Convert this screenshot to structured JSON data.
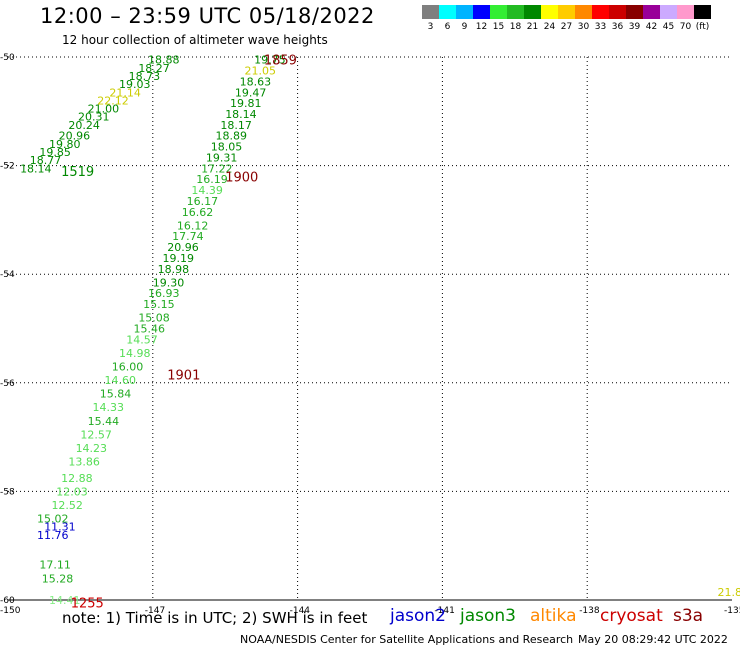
{
  "header": {
    "title": "12:00 – 23:59 UTC 05/18/2022",
    "subtitle": "12 hour collection of altimeter wave heights"
  },
  "legend": {
    "colors": [
      "#7f7f7f",
      "#00ffff",
      "#00b4ff",
      "#0000ff",
      "#33ee33",
      "#22bb22",
      "#008800",
      "#ffff00",
      "#ffcc00",
      "#ff8800",
      "#ff0000",
      "#cc0000",
      "#880000",
      "#990099",
      "#ccaaff",
      "#ff99cc",
      "#000000"
    ],
    "labels": [
      "3",
      "6",
      "9",
      "12",
      "15",
      "18",
      "21",
      "24",
      "27",
      "30",
      "33",
      "36",
      "39",
      "42",
      "45",
      "70",
      "(ft)"
    ]
  },
  "map": {
    "lon_range": [
      -150,
      -135
    ],
    "lat_range": [
      -60,
      -50
    ],
    "lon_ticks": [
      "-150",
      "-147",
      "-144",
      "-141",
      "-138",
      "-135"
    ],
    "lat_ticks": [
      "-50",
      "-52",
      "-54",
      "-56",
      "-58",
      "-60"
    ],
    "grid": "dotted"
  },
  "chart_data": {
    "type": "scatter",
    "x_label": "longitude",
    "y_label": "latitude",
    "swh_points": [
      {
        "lon": -147.1,
        "lat": -50.05,
        "v": "18.88",
        "c": "#008800"
      },
      {
        "lon": -147.3,
        "lat": -50.2,
        "v": "18.27",
        "c": "#008800"
      },
      {
        "lon": -147.5,
        "lat": -50.35,
        "v": "18.73",
        "c": "#008800"
      },
      {
        "lon": -147.7,
        "lat": -50.5,
        "v": "19.03",
        "c": "#008800"
      },
      {
        "lon": -147.9,
        "lat": -50.65,
        "v": "21.14",
        "c": "#cccc00"
      },
      {
        "lon": -148.15,
        "lat": -50.8,
        "v": "22.12",
        "c": "#cccc00"
      },
      {
        "lon": -148.35,
        "lat": -50.95,
        "v": "21.00",
        "c": "#008800"
      },
      {
        "lon": -148.55,
        "lat": -51.1,
        "v": "20.31",
        "c": "#008800"
      },
      {
        "lon": -148.75,
        "lat": -51.25,
        "v": "20.24",
        "c": "#008800"
      },
      {
        "lon": -148.95,
        "lat": -51.45,
        "v": "20.96",
        "c": "#008800"
      },
      {
        "lon": -149.15,
        "lat": -51.6,
        "v": "19.80",
        "c": "#008800"
      },
      {
        "lon": -149.35,
        "lat": -51.75,
        "v": "19.85",
        "c": "#008800"
      },
      {
        "lon": -149.55,
        "lat": -51.9,
        "v": "18.77",
        "c": "#008800"
      },
      {
        "lon": -149.75,
        "lat": -52.05,
        "v": "18.14",
        "c": "#008800"
      },
      {
        "lon": -144.9,
        "lat": -50.05,
        "v": "19.75",
        "c": "#008800"
      },
      {
        "lon": -145.1,
        "lat": -50.25,
        "v": "21.05",
        "c": "#cccc00"
      },
      {
        "lon": -145.2,
        "lat": -50.45,
        "v": "18.63",
        "c": "#008800"
      },
      {
        "lon": -145.3,
        "lat": -50.65,
        "v": "19.47",
        "c": "#008800"
      },
      {
        "lon": -145.4,
        "lat": -50.85,
        "v": "19.81",
        "c": "#008800"
      },
      {
        "lon": -145.5,
        "lat": -51.05,
        "v": "18.14",
        "c": "#008800"
      },
      {
        "lon": -145.6,
        "lat": -51.25,
        "v": "18.17",
        "c": "#008800"
      },
      {
        "lon": -145.7,
        "lat": -51.45,
        "v": "18.89",
        "c": "#008800"
      },
      {
        "lon": -145.8,
        "lat": -51.65,
        "v": "18.05",
        "c": "#008800"
      },
      {
        "lon": -145.9,
        "lat": -51.85,
        "v": "19.31",
        "c": "#008800"
      },
      {
        "lon": -146.0,
        "lat": -52.05,
        "v": "17.22",
        "c": "#22aa22"
      },
      {
        "lon": -146.1,
        "lat": -52.25,
        "v": "16.19",
        "c": "#22aa22"
      },
      {
        "lon": -146.2,
        "lat": -52.45,
        "v": "14.39",
        "c": "#55dd55"
      },
      {
        "lon": -146.3,
        "lat": -52.65,
        "v": "16.17",
        "c": "#22aa22"
      },
      {
        "lon": -146.4,
        "lat": -52.85,
        "v": "16.62",
        "c": "#22aa22"
      },
      {
        "lon": -146.5,
        "lat": -53.1,
        "v": "16.12",
        "c": "#22aa22"
      },
      {
        "lon": -146.6,
        "lat": -53.3,
        "v": "17.74",
        "c": "#22aa22"
      },
      {
        "lon": -146.7,
        "lat": -53.5,
        "v": "20.96",
        "c": "#008800"
      },
      {
        "lon": -146.8,
        "lat": -53.7,
        "v": "19.19",
        "c": "#008800"
      },
      {
        "lon": -146.9,
        "lat": -53.9,
        "v": "18.98",
        "c": "#008800"
      },
      {
        "lon": -147.0,
        "lat": -54.15,
        "v": "19.30",
        "c": "#008800"
      },
      {
        "lon": -147.1,
        "lat": -54.35,
        "v": "16.93",
        "c": "#22aa22"
      },
      {
        "lon": -147.2,
        "lat": -54.55,
        "v": "15.15",
        "c": "#22aa22"
      },
      {
        "lon": -147.3,
        "lat": -54.8,
        "v": "15.08",
        "c": "#22aa22"
      },
      {
        "lon": -147.4,
        "lat": -55.0,
        "v": "15.46",
        "c": "#22aa22"
      },
      {
        "lon": -147.55,
        "lat": -55.2,
        "v": "14.57",
        "c": "#55dd55"
      },
      {
        "lon": -147.7,
        "lat": -55.45,
        "v": "14.98",
        "c": "#55dd55"
      },
      {
        "lon": -147.85,
        "lat": -55.7,
        "v": "16.00",
        "c": "#22aa22"
      },
      {
        "lon": -148.0,
        "lat": -55.95,
        "v": "14.60",
        "c": "#55dd55"
      },
      {
        "lon": -148.1,
        "lat": -56.2,
        "v": "15.84",
        "c": "#22aa22"
      },
      {
        "lon": -148.25,
        "lat": -56.45,
        "v": "14.33",
        "c": "#55dd55"
      },
      {
        "lon": -148.35,
        "lat": -56.7,
        "v": "15.44",
        "c": "#22aa22"
      },
      {
        "lon": -148.5,
        "lat": -56.95,
        "v": "12.57",
        "c": "#55dd55"
      },
      {
        "lon": -148.6,
        "lat": -57.2,
        "v": "14.23",
        "c": "#55dd55"
      },
      {
        "lon": -148.75,
        "lat": -57.45,
        "v": "13.86",
        "c": "#55dd55"
      },
      {
        "lon": -148.9,
        "lat": -57.75,
        "v": "12.88",
        "c": "#55dd55"
      },
      {
        "lon": -149.0,
        "lat": -58.0,
        "v": "12.03",
        "c": "#55dd55"
      },
      {
        "lon": -149.1,
        "lat": -58.25,
        "v": "12.52",
        "c": "#55dd55"
      },
      {
        "lon": -149.4,
        "lat": -58.5,
        "v": "15.02",
        "c": "#22aa22"
      },
      {
        "lon": -149.25,
        "lat": -58.65,
        "v": "11.31",
        "c": "#0000cc"
      },
      {
        "lon": -149.4,
        "lat": -58.8,
        "v": "11.76",
        "c": "#0000cc"
      },
      {
        "lon": -149.35,
        "lat": -59.35,
        "v": "17.11",
        "c": "#22aa22"
      },
      {
        "lon": -149.3,
        "lat": -59.6,
        "v": "15.28",
        "c": "#22aa22"
      },
      {
        "lon": -149.15,
        "lat": -60.0,
        "v": "14.41",
        "c": "#88ee88"
      },
      {
        "lon": -135.3,
        "lat": -59.85,
        "v": "21.80",
        "c": "#cccc00"
      }
    ],
    "time_labels": [
      {
        "lon": -144.7,
        "lat": -50.05,
        "t": "1859",
        "c": "#880000"
      },
      {
        "lon": -148.9,
        "lat": -52.1,
        "t": "1519",
        "c": "#008800"
      },
      {
        "lon": -145.5,
        "lat": -52.2,
        "t": "1900",
        "c": "#880000"
      },
      {
        "lon": -146.7,
        "lat": -55.85,
        "t": "1901",
        "c": "#880000"
      },
      {
        "lon": -148.7,
        "lat": -60.05,
        "t": "1255",
        "c": "#cc0000"
      }
    ]
  },
  "footer": {
    "note": "note:  1) Time is in UTC;  2) SWH is in feet",
    "satellites": [
      {
        "name": "jason2",
        "color": "#0000cc"
      },
      {
        "name": "jason3",
        "color": "#008800"
      },
      {
        "name": "altika",
        "color": "#ff8800"
      },
      {
        "name": "cryosat",
        "color": "#cc0000"
      },
      {
        "name": "s3a",
        "color": "#880000"
      }
    ],
    "credit": "NOAA/NESDIS Center for Satellite Applications and Research",
    "timestamp": "May 20 08:29:42 UTC 2022"
  }
}
